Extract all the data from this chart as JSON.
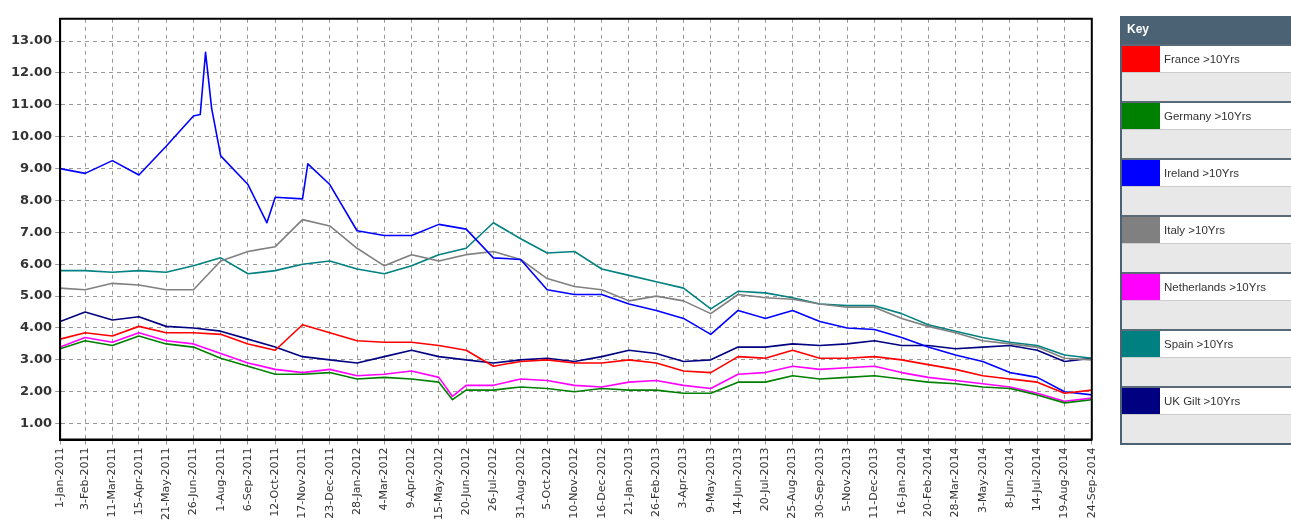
{
  "chart_data": {
    "type": "line",
    "legend": "right",
    "legend_title": "Key",
    "grid": true,
    "marker": "none",
    "line_style": "solid",
    "x": [
      "2011-01-01",
      "2011-02-03",
      "2011-03-11",
      "2011-04-15",
      "2011-05-21",
      "2011-06-26",
      "2011-08-01",
      "2011-09-06",
      "2011-10-12",
      "2011-11-17",
      "2011-12-23",
      "2012-01-28",
      "2012-03-04",
      "2012-04-09",
      "2012-05-15",
      "2012-06-20",
      "2012-07-26",
      "2012-08-31",
      "2012-10-05",
      "2012-11-10",
      "2012-12-16",
      "2013-01-21",
      "2013-02-26",
      "2013-04-03",
      "2013-05-09",
      "2013-06-14",
      "2013-07-20",
      "2013-08-25",
      "2013-09-30",
      "2013-11-05",
      "2013-12-11",
      "2014-01-16",
      "2014-02-20",
      "2014-03-28",
      "2014-05-03",
      "2014-06-08",
      "2014-07-14",
      "2014-08-19",
      "2014-09-24"
    ],
    "xlim": [
      "2011-01-01",
      "2014-09-24"
    ],
    "xticks": [
      {
        "value": "2011-01-01",
        "label": "1-Jan-2011"
      },
      {
        "value": "2011-02-03",
        "label": "3-Feb-2011"
      },
      {
        "value": "2011-03-11",
        "label": "11-Mar-2011"
      },
      {
        "value": "2011-04-15",
        "label": "15-Apr-2011"
      },
      {
        "value": "2011-05-21",
        "label": "21-May-2011"
      },
      {
        "value": "2011-06-26",
        "label": "26-Jun-2011"
      },
      {
        "value": "2011-08-01",
        "label": "1-Aug-2011"
      },
      {
        "value": "2011-09-06",
        "label": "6-Sep-2011"
      },
      {
        "value": "2011-10-12",
        "label": "12-Oct-2011"
      },
      {
        "value": "2011-11-17",
        "label": "17-Nov-2011"
      },
      {
        "value": "2011-12-23",
        "label": "23-Dec-2011"
      },
      {
        "value": "2012-01-28",
        "label": "28-Jan-2012"
      },
      {
        "value": "2012-03-04",
        "label": "4-Mar-2012"
      },
      {
        "value": "2012-04-09",
        "label": "9-Apr-2012"
      },
      {
        "value": "2012-05-15",
        "label": "15-May-2012"
      },
      {
        "value": "2012-06-20",
        "label": "20-Jun-2012"
      },
      {
        "value": "2012-07-26",
        "label": "26-Jul-2012"
      },
      {
        "value": "2012-08-31",
        "label": "31-Aug-2012"
      },
      {
        "value": "2012-10-05",
        "label": "5-Oct-2012"
      },
      {
        "value": "2012-11-10",
        "label": "10-Nov-2012"
      },
      {
        "value": "2012-12-16",
        "label": "16-Dec-2012"
      },
      {
        "value": "2013-01-21",
        "label": "21-Jan-2013"
      },
      {
        "value": "2013-02-26",
        "label": "26-Feb-2013"
      },
      {
        "value": "2013-04-03",
        "label": "3-Apr-2013"
      },
      {
        "value": "2013-05-09",
        "label": "9-May-2013"
      },
      {
        "value": "2013-06-14",
        "label": "14-Jun-2013"
      },
      {
        "value": "2013-07-20",
        "label": "20-Jul-2013"
      },
      {
        "value": "2013-08-25",
        "label": "25-Aug-2013"
      },
      {
        "value": "2013-09-30",
        "label": "30-Sep-2013"
      },
      {
        "value": "2013-11-05",
        "label": "5-Nov-2013"
      },
      {
        "value": "2013-12-11",
        "label": "11-Dec-2013"
      },
      {
        "value": "2014-01-16",
        "label": "16-Jan-2014"
      },
      {
        "value": "2014-02-20",
        "label": "20-Feb-2014"
      },
      {
        "value": "2014-03-28",
        "label": "28-Mar-2014"
      },
      {
        "value": "2014-05-03",
        "label": "3-May-2014"
      },
      {
        "value": "2014-06-08",
        "label": "8-Jun-2014"
      },
      {
        "value": "2014-07-14",
        "label": "14-Jul-2014"
      },
      {
        "value": "2014-08-19",
        "label": "19-Aug-2014"
      },
      {
        "value": "2014-09-24",
        "label": "24-Sep-2014"
      }
    ],
    "ylim": [
      0.5,
      13.7
    ],
    "yticks": [
      {
        "value": 1,
        "label": "1.00"
      },
      {
        "value": 2,
        "label": "2.00"
      },
      {
        "value": 3,
        "label": "3.00"
      },
      {
        "value": 4,
        "label": "4.00"
      },
      {
        "value": 5,
        "label": "5.00"
      },
      {
        "value": 6,
        "label": "6.00"
      },
      {
        "value": 7,
        "label": "7.00"
      },
      {
        "value": 8,
        "label": "8.00"
      },
      {
        "value": 9,
        "label": "9.00"
      },
      {
        "value": 10,
        "label": "10.00"
      },
      {
        "value": 11,
        "label": "11.00"
      },
      {
        "value": 12,
        "label": "12.00"
      },
      {
        "value": 13,
        "label": "13.00"
      }
    ],
    "series": [
      {
        "name": "France >10Yrs",
        "color": "#ff0000",
        "values": [
          3.65,
          3.85,
          3.75,
          4.05,
          3.85,
          3.85,
          3.8,
          3.5,
          3.3,
          4.1,
          3.85,
          3.6,
          3.55,
          3.55,
          3.45,
          3.3,
          2.8,
          2.95,
          3.0,
          2.9,
          2.9,
          3.0,
          2.9,
          2.65,
          2.6,
          3.1,
          3.05,
          3.3,
          3.05,
          3.05,
          3.1,
          3.0,
          2.85,
          2.7,
          2.5,
          2.4,
          2.3,
          1.95,
          2.05
        ]
      },
      {
        "name": "Germany >10Yrs",
        "color": "#008000",
        "x": [
          "2011-01-01",
          "2011-02-03",
          "2011-03-11",
          "2011-04-15",
          "2011-05-21",
          "2011-06-26",
          "2011-08-01",
          "2011-09-06",
          "2011-10-12",
          "2011-11-17",
          "2011-12-23",
          "2012-01-28",
          "2012-03-04",
          "2012-04-09",
          "2012-05-15",
          "2012-06-02",
          "2012-06-20",
          "2012-07-26",
          "2012-08-31",
          "2012-10-05",
          "2012-11-10",
          "2012-12-16",
          "2013-01-21",
          "2013-02-26",
          "2013-04-03",
          "2013-05-09",
          "2013-06-14",
          "2013-07-20",
          "2013-08-25",
          "2013-09-30",
          "2013-11-05",
          "2013-12-11",
          "2014-01-16",
          "2014-02-20",
          "2014-03-28",
          "2014-05-03",
          "2014-06-08",
          "2014-07-14",
          "2014-08-19",
          "2014-09-24"
        ],
        "values": [
          3.35,
          3.6,
          3.45,
          3.75,
          3.5,
          3.4,
          3.05,
          2.8,
          2.55,
          2.55,
          2.6,
          2.4,
          2.45,
          2.4,
          2.3,
          1.75,
          2.05,
          2.05,
          2.15,
          2.1,
          2.0,
          2.1,
          2.05,
          2.05,
          1.95,
          1.95,
          2.3,
          2.3,
          2.5,
          2.4,
          2.45,
          2.5,
          2.4,
          2.3,
          2.25,
          2.15,
          2.1,
          1.9,
          1.65,
          1.75
        ]
      },
      {
        "name": "Ireland >10Yrs",
        "color": "#0000ff",
        "x": [
          "2011-01-01",
          "2011-02-03",
          "2011-03-11",
          "2011-04-15",
          "2011-05-21",
          "2011-06-26",
          "2011-07-05",
          "2011-07-12",
          "2011-07-20",
          "2011-08-01",
          "2011-09-06",
          "2011-10-01",
          "2011-10-12",
          "2011-11-17",
          "2011-11-24",
          "2011-12-23",
          "2012-01-28",
          "2012-03-04",
          "2012-04-09",
          "2012-05-15",
          "2012-06-20",
          "2012-07-26",
          "2012-08-31",
          "2012-10-05",
          "2012-11-10",
          "2012-12-16",
          "2013-01-21",
          "2013-02-26",
          "2013-04-03",
          "2013-05-09",
          "2013-06-14",
          "2013-07-20",
          "2013-08-25",
          "2013-09-30",
          "2013-11-05",
          "2013-12-11",
          "2014-01-16",
          "2014-02-20",
          "2014-03-28",
          "2014-05-03",
          "2014-06-08",
          "2014-07-14",
          "2014-08-19",
          "2014-09-24"
        ],
        "values": [
          9.0,
          8.85,
          9.25,
          8.8,
          9.7,
          10.65,
          10.7,
          12.65,
          10.9,
          9.4,
          8.5,
          7.3,
          8.1,
          8.05,
          9.15,
          8.5,
          7.05,
          6.9,
          6.9,
          7.25,
          7.1,
          6.2,
          6.15,
          5.2,
          5.05,
          5.05,
          4.75,
          4.55,
          4.3,
          3.8,
          4.55,
          4.3,
          4.55,
          4.2,
          4.0,
          3.95,
          3.7,
          3.4,
          3.15,
          2.95,
          2.6,
          2.45,
          2.0,
          1.9
        ]
      },
      {
        "name": "Italy >10Yrs",
        "color": "#808080",
        "values": [
          5.25,
          5.2,
          5.4,
          5.35,
          5.2,
          5.2,
          6.1,
          6.4,
          6.55,
          7.4,
          7.2,
          6.5,
          5.95,
          6.3,
          6.1,
          6.3,
          6.4,
          6.15,
          5.55,
          5.3,
          5.2,
          4.85,
          5.0,
          4.85,
          4.45,
          5.05,
          4.95,
          4.9,
          4.75,
          4.65,
          4.65,
          4.3,
          4.05,
          3.85,
          3.6,
          3.5,
          3.4,
          3.05,
          3.0
        ]
      },
      {
        "name": "Netherlands >10Yrs",
        "color": "#ff00ff",
        "x": [
          "2011-01-01",
          "2011-02-03",
          "2011-03-11",
          "2011-04-15",
          "2011-05-21",
          "2011-06-26",
          "2011-08-01",
          "2011-09-06",
          "2011-10-12",
          "2011-11-17",
          "2011-12-23",
          "2012-01-28",
          "2012-03-04",
          "2012-04-09",
          "2012-05-15",
          "2012-06-02",
          "2012-06-20",
          "2012-07-26",
          "2012-08-31",
          "2012-10-05",
          "2012-11-10",
          "2012-12-16",
          "2013-01-21",
          "2013-02-26",
          "2013-04-03",
          "2013-05-09",
          "2013-06-14",
          "2013-07-20",
          "2013-08-25",
          "2013-09-30",
          "2013-11-05",
          "2013-12-11",
          "2014-01-16",
          "2014-02-20",
          "2014-03-28",
          "2014-05-03",
          "2014-06-08",
          "2014-07-14",
          "2014-08-19",
          "2014-09-24"
        ],
        "values": [
          3.4,
          3.7,
          3.55,
          3.85,
          3.6,
          3.5,
          3.2,
          2.9,
          2.7,
          2.6,
          2.7,
          2.5,
          2.55,
          2.65,
          2.45,
          1.85,
          2.2,
          2.2,
          2.4,
          2.35,
          2.2,
          2.15,
          2.3,
          2.35,
          2.2,
          2.1,
          2.55,
          2.6,
          2.8,
          2.7,
          2.75,
          2.8,
          2.6,
          2.45,
          2.35,
          2.25,
          2.15,
          1.95,
          1.7,
          1.8
        ]
      },
      {
        "name": "Spain >10Yrs",
        "color": "#008080",
        "values": [
          5.8,
          5.8,
          5.75,
          5.8,
          5.75,
          5.95,
          6.2,
          5.7,
          5.8,
          6.0,
          6.1,
          5.85,
          5.7,
          5.95,
          6.3,
          6.5,
          7.3,
          6.8,
          6.35,
          6.4,
          5.85,
          5.65,
          5.45,
          5.25,
          4.6,
          5.15,
          5.1,
          4.95,
          4.75,
          4.7,
          4.7,
          4.45,
          4.1,
          3.9,
          3.7,
          3.55,
          3.45,
          3.15,
          3.05
        ]
      },
      {
        "name": "UK Gilt >10Yrs",
        "color": "#000080",
        "values": [
          4.2,
          4.5,
          4.25,
          4.35,
          4.05,
          4.0,
          3.9,
          3.65,
          3.4,
          3.1,
          3.0,
          2.9,
          3.1,
          3.3,
          3.1,
          3.0,
          2.9,
          3.0,
          3.05,
          2.95,
          3.1,
          3.3,
          3.2,
          2.95,
          3.0,
          3.4,
          3.4,
          3.5,
          3.45,
          3.5,
          3.6,
          3.45,
          3.45,
          3.35,
          3.4,
          3.45,
          3.3,
          2.95,
          3.05
        ]
      }
    ]
  }
}
